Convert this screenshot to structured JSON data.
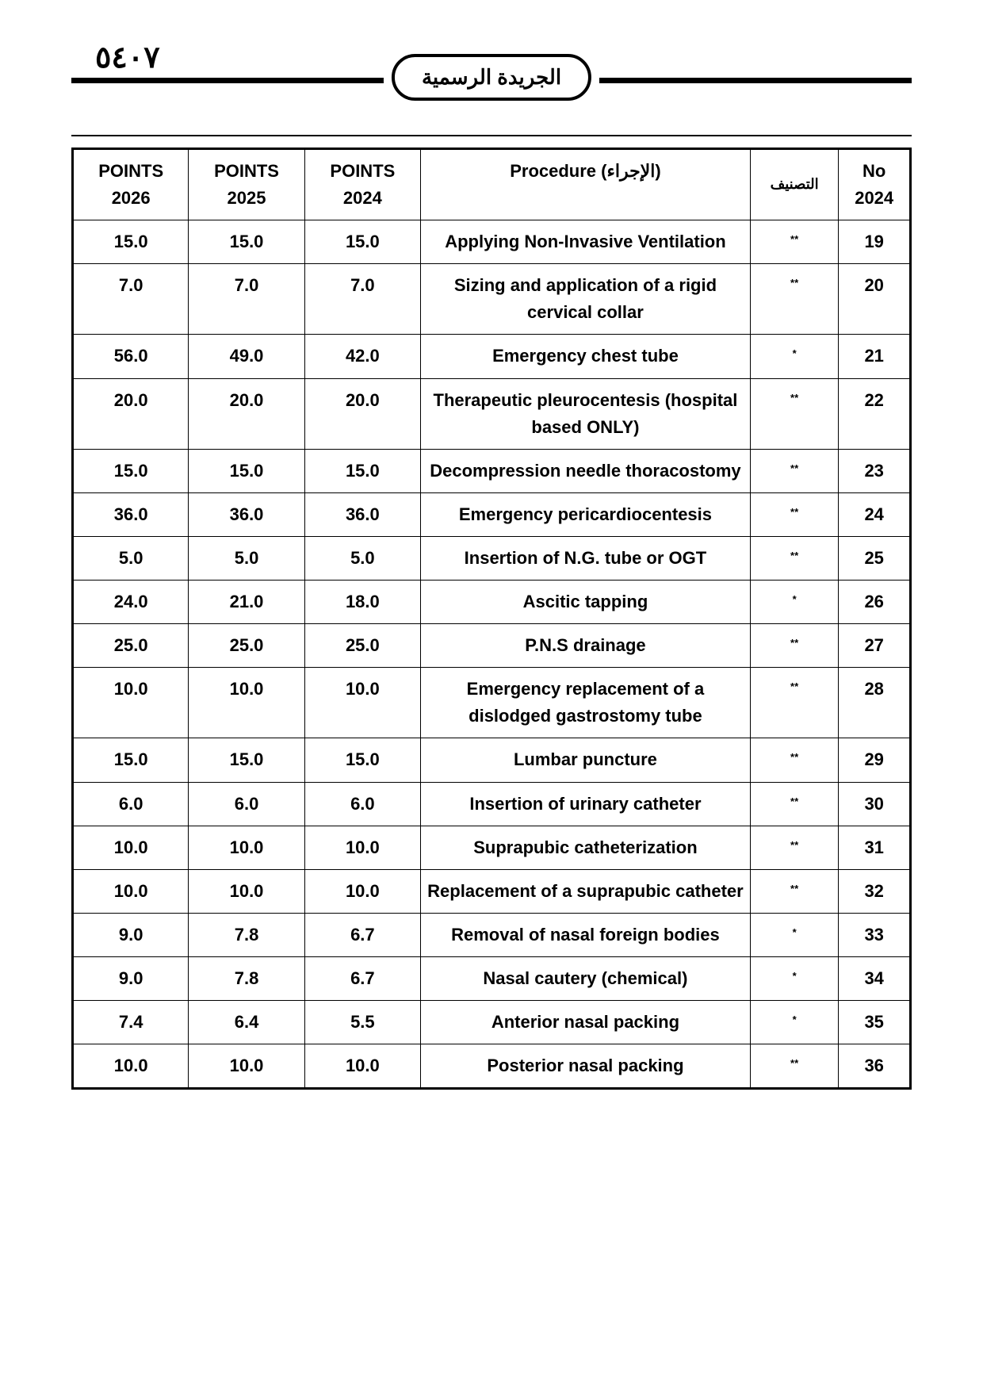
{
  "page_number_arabic": "٥٤٠٧",
  "badge_text": "الجريدة الرسمية",
  "headers": {
    "points_2026": "POINTS",
    "points_2026_year": "2026",
    "points_2025": "POINTS",
    "points_2025_year": "2025",
    "points_2024": "POINTS",
    "points_2024_year": "2024",
    "procedure": "Procedure (الإجراء)",
    "classification": "التصنيف",
    "no": "No",
    "no_year": "2024"
  },
  "rows": [
    {
      "p26": "15.0",
      "p25": "15.0",
      "p24": "15.0",
      "proc": "Applying Non-Invasive Ventilation",
      "cls": "**",
      "no": "19"
    },
    {
      "p26": "7.0",
      "p25": "7.0",
      "p24": "7.0",
      "proc": "Sizing and application of a rigid cervical collar",
      "cls": "**",
      "no": "20"
    },
    {
      "p26": "56.0",
      "p25": "49.0",
      "p24": "42.0",
      "proc": "Emergency chest tube",
      "cls": "*",
      "no": "21"
    },
    {
      "p26": "20.0",
      "p25": "20.0",
      "p24": "20.0",
      "proc": "Therapeutic pleurocentesis (hospital based ONLY)",
      "cls": "**",
      "no": "22"
    },
    {
      "p26": "15.0",
      "p25": "15.0",
      "p24": "15.0",
      "proc": "Decompression needle thoracostomy",
      "cls": "**",
      "no": "23"
    },
    {
      "p26": "36.0",
      "p25": "36.0",
      "p24": "36.0",
      "proc": "Emergency pericardiocentesis",
      "cls": "**",
      "no": "24"
    },
    {
      "p26": "5.0",
      "p25": "5.0",
      "p24": "5.0",
      "proc": "Insertion of N.G. tube or OGT",
      "cls": "**",
      "no": "25"
    },
    {
      "p26": "24.0",
      "p25": "21.0",
      "p24": "18.0",
      "proc": "Ascitic tapping",
      "cls": "*",
      "no": "26"
    },
    {
      "p26": "25.0",
      "p25": "25.0",
      "p24": "25.0",
      "proc": "P.N.S drainage",
      "cls": "**",
      "no": "27"
    },
    {
      "p26": "10.0",
      "p25": "10.0",
      "p24": "10.0",
      "proc": "Emergency replacement of a dislodged gastrostomy tube",
      "cls": "**",
      "no": "28"
    },
    {
      "p26": "15.0",
      "p25": "15.0",
      "p24": "15.0",
      "proc": "Lumbar puncture",
      "cls": "**",
      "no": "29"
    },
    {
      "p26": "6.0",
      "p25": "6.0",
      "p24": "6.0",
      "proc": "Insertion of urinary catheter",
      "cls": "**",
      "no": "30"
    },
    {
      "p26": "10.0",
      "p25": "10.0",
      "p24": "10.0",
      "proc": "Suprapubic catheterization",
      "cls": "**",
      "no": "31"
    },
    {
      "p26": "10.0",
      "p25": "10.0",
      "p24": "10.0",
      "proc": "Replacement of a suprapubic catheter",
      "cls": "**",
      "no": "32"
    },
    {
      "p26": "9.0",
      "p25": "7.8",
      "p24": "6.7",
      "proc": "Removal of nasal foreign bodies",
      "cls": "*",
      "no": "33"
    },
    {
      "p26": "9.0",
      "p25": "7.8",
      "p24": "6.7",
      "proc": "Nasal cautery (chemical)",
      "cls": "*",
      "no": "34"
    },
    {
      "p26": "7.4",
      "p25": "6.4",
      "p24": "5.5",
      "proc": "Anterior nasal packing",
      "cls": "*",
      "no": "35"
    },
    {
      "p26": "10.0",
      "p25": "10.0",
      "p24": "10.0",
      "proc": "Posterior nasal packing",
      "cls": "**",
      "no": "36"
    }
  ]
}
